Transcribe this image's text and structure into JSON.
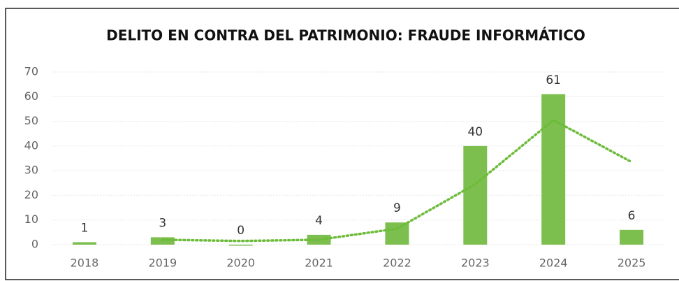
{
  "chart_data": {
    "type": "bar",
    "title": "DELITO EN CONTRA DEL PATRIMONIO: FRAUDE INFORMÁTICO",
    "categories": [
      "2018",
      "2019",
      "2020",
      "2021",
      "2022",
      "2023",
      "2024",
      "2025"
    ],
    "values": [
      1,
      3,
      0,
      4,
      9,
      40,
      61,
      6
    ],
    "color": "#7dbf4e",
    "trendline": {
      "color": "#6dbb3a",
      "values": [
        null,
        2,
        1.5,
        2,
        6.5,
        24.5,
        50.5,
        33.5
      ]
    },
    "ylim": [
      0,
      70
    ],
    "yticks": [
      0,
      10,
      20,
      30,
      40,
      50,
      60,
      70
    ],
    "grid": true,
    "data_labels": true
  }
}
